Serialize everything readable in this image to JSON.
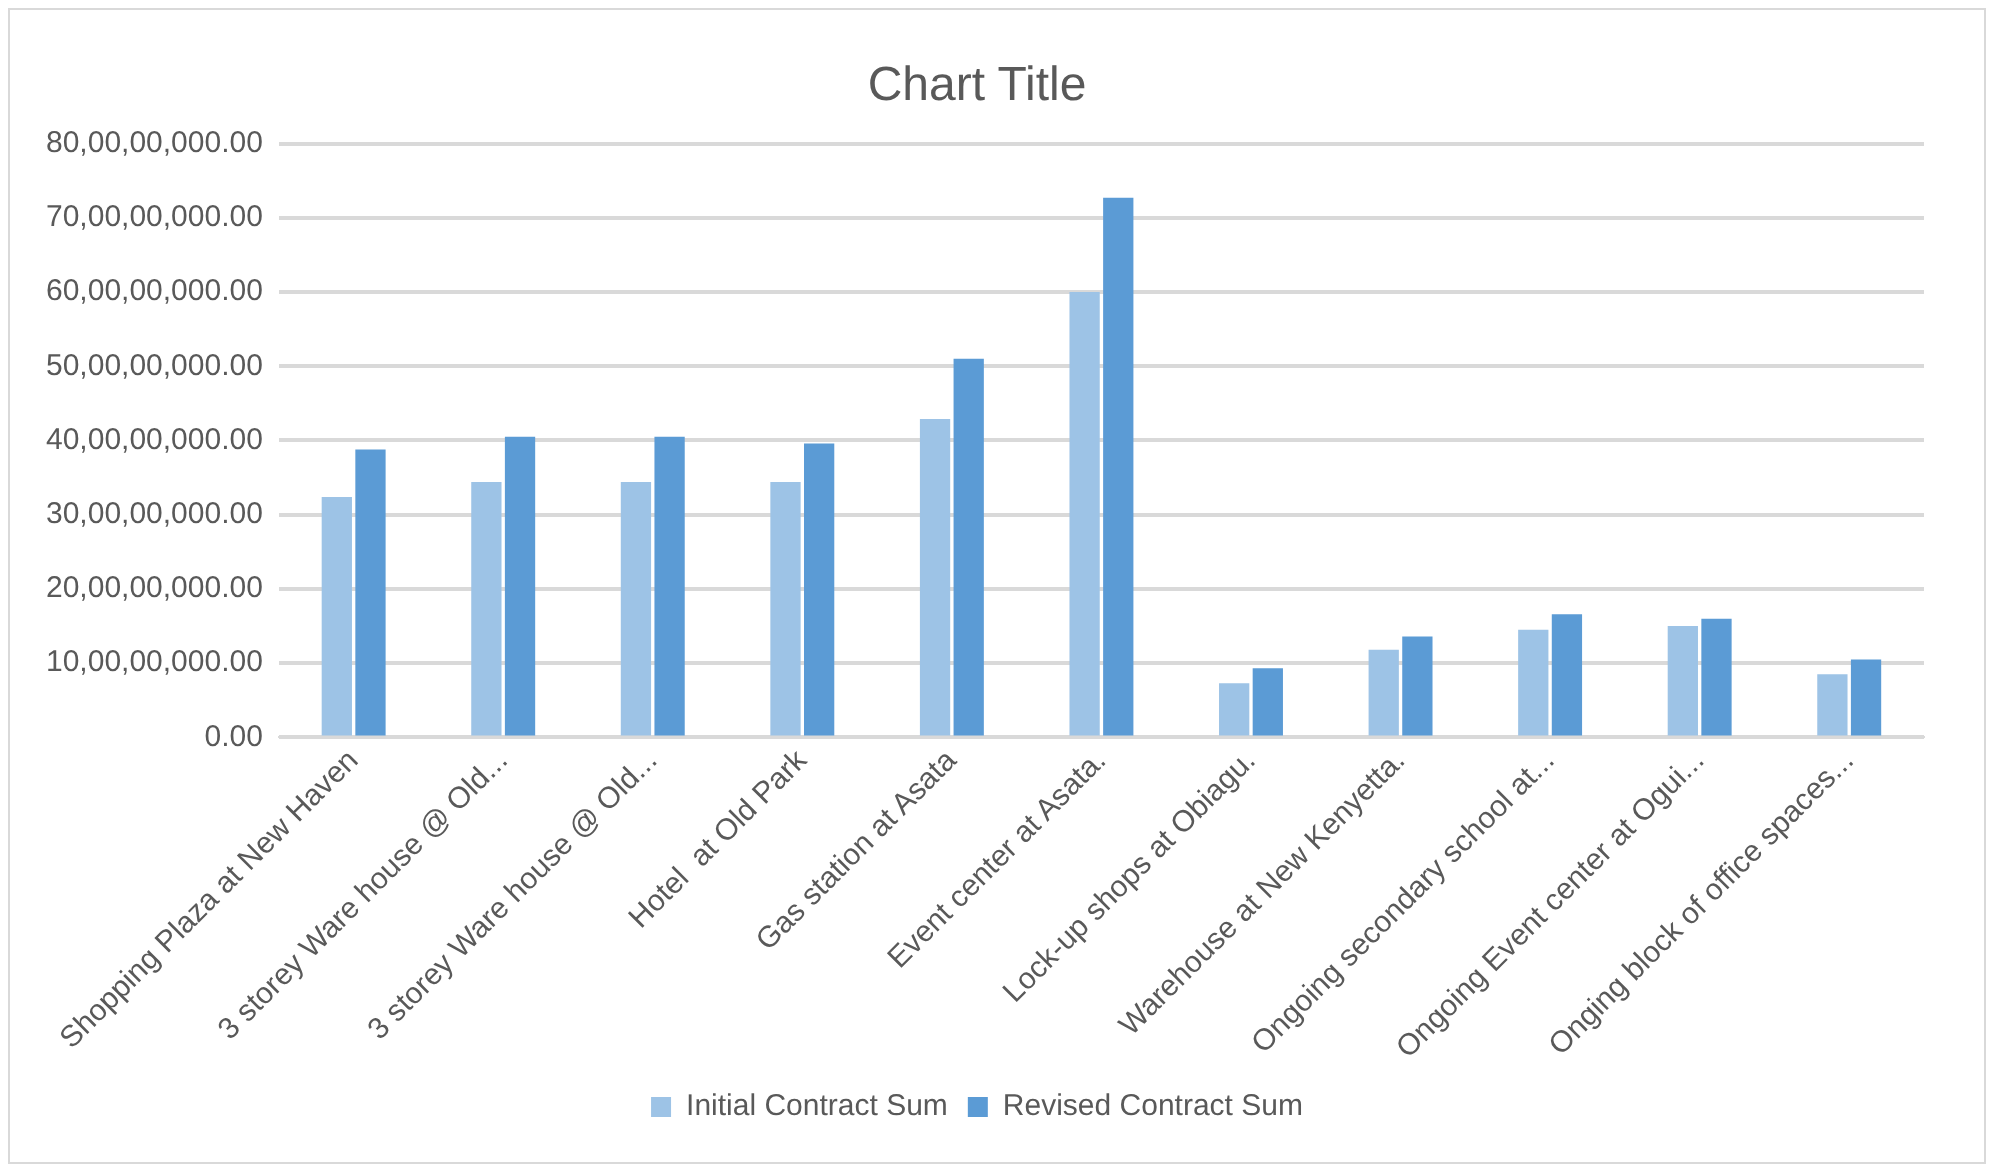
{
  "chart_data": {
    "type": "bar",
    "title": "Chart Title",
    "categories": [
      "Shopping Plaza at New Haven",
      "3 storey Ware house @ Old...",
      "3 storey Ware house @ Old...",
      "Hotel  at Old Park",
      "Gas station at Asata",
      "Event center at Asata.",
      "Lock-up shops at Obiagu.",
      "Warehouse at New Kenyetta.",
      "Ongoing secondary school at...",
      "Ongoing Event center at Ogui...",
      "Onging block of office spaces..."
    ],
    "series": [
      {
        "name": "Initial Contract Sum",
        "color": "#9dc3e6",
        "values": [
          324000000,
          344000000,
          344000000,
          344000000,
          429000000,
          600000000,
          73000000,
          118000000,
          145000000,
          150000000,
          85000000
        ]
      },
      {
        "name": "Revised Contract Sum",
        "color": "#5b9bd5",
        "values": [
          388000000,
          405000000,
          405000000,
          396000000,
          510000000,
          727000000,
          93000000,
          136000000,
          166000000,
          160000000,
          105000000
        ]
      }
    ],
    "ylim": [
      0,
      800000000
    ],
    "yticks": [
      {
        "value": 0,
        "label": "0.00"
      },
      {
        "value": 100000000,
        "label": "10,00,00,000.00"
      },
      {
        "value": 200000000,
        "label": "20,00,00,000.00"
      },
      {
        "value": 300000000,
        "label": "30,00,00,000.00"
      },
      {
        "value": 400000000,
        "label": "40,00,00,000.00"
      },
      {
        "value": 500000000,
        "label": "50,00,00,000.00"
      },
      {
        "value": 600000000,
        "label": "60,00,00,000.00"
      },
      {
        "value": 700000000,
        "label": "70,00,00,000.00"
      },
      {
        "value": 800000000,
        "label": "80,00,00,000.00"
      }
    ],
    "grid": "y",
    "legend": "bottom"
  }
}
